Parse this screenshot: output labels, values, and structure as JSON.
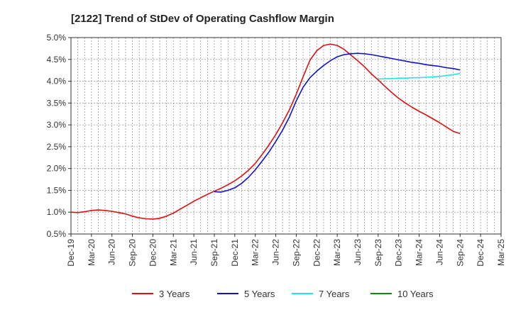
{
  "chart_data": {
    "type": "line",
    "title": "[2122]  Trend of StDev of Operating Cashflow Margin",
    "xlabel": "",
    "ylabel": "",
    "x_ticks": [
      "Dec-19",
      "Mar-20",
      "Jun-20",
      "Sep-20",
      "Dec-20",
      "Mar-21",
      "Jun-21",
      "Sep-21",
      "Dec-21",
      "Mar-22",
      "Jun-22",
      "Sep-22",
      "Dec-22",
      "Mar-23",
      "Jun-23",
      "Sep-23",
      "Dec-23",
      "Mar-24",
      "Jun-24",
      "Sep-24",
      "Dec-24",
      "Mar-25"
    ],
    "y_ticks": [
      "0.5%",
      "1.0%",
      "1.5%",
      "2.0%",
      "2.5%",
      "3.0%",
      "3.5%",
      "4.0%",
      "4.5%",
      "5.0%"
    ],
    "ylim": [
      0.5,
      5.0
    ],
    "grid": true,
    "legend_position": "bottom",
    "colors": {
      "3 Years": "#dd1111",
      "5 Years": "#1111cc",
      "7 Years": "#22e5e5",
      "10 Years": "#118811"
    },
    "series": [
      {
        "name": "3 Years",
        "x": [
          "Dec-19",
          "Jan-20",
          "Feb-20",
          "Mar-20",
          "Apr-20",
          "May-20",
          "Jun-20",
          "Jul-20",
          "Aug-20",
          "Sep-20",
          "Oct-20",
          "Nov-20",
          "Dec-20",
          "Jan-21",
          "Feb-21",
          "Mar-21",
          "Apr-21",
          "May-21",
          "Jun-21",
          "Jul-21",
          "Aug-21",
          "Sep-21",
          "Oct-21",
          "Nov-21",
          "Dec-21",
          "Jan-22",
          "Feb-22",
          "Mar-22",
          "Apr-22",
          "May-22",
          "Jun-22",
          "Jul-22",
          "Aug-22",
          "Sep-22",
          "Oct-22",
          "Nov-22",
          "Dec-22",
          "Jan-23",
          "Feb-23",
          "Mar-23",
          "Apr-23",
          "May-23",
          "Jun-23",
          "Jul-23",
          "Aug-23",
          "Sep-23",
          "Oct-23",
          "Nov-23",
          "Dec-23",
          "Jan-24",
          "Feb-24",
          "Mar-24",
          "Apr-24",
          "May-24",
          "Jun-24",
          "Jul-24",
          "Aug-24",
          "Sep-24"
        ],
        "values": [
          1.0,
          0.99,
          1.01,
          1.04,
          1.05,
          1.04,
          1.02,
          0.99,
          0.96,
          0.91,
          0.87,
          0.85,
          0.84,
          0.86,
          0.91,
          0.98,
          1.07,
          1.16,
          1.25,
          1.33,
          1.41,
          1.48,
          1.55,
          1.63,
          1.72,
          1.83,
          1.96,
          2.12,
          2.32,
          2.54,
          2.78,
          3.05,
          3.35,
          3.7,
          4.1,
          4.48,
          4.7,
          4.82,
          4.85,
          4.82,
          4.73,
          4.6,
          4.47,
          4.33,
          4.17,
          4.03,
          3.88,
          3.74,
          3.61,
          3.5,
          3.4,
          3.31,
          3.23,
          3.14,
          3.05,
          2.95,
          2.85,
          2.8
        ]
      },
      {
        "name": "5 Years",
        "x": [
          "Sep-21",
          "Oct-21",
          "Nov-21",
          "Dec-21",
          "Jan-22",
          "Feb-22",
          "Mar-22",
          "Apr-22",
          "May-22",
          "Jun-22",
          "Jul-22",
          "Aug-22",
          "Sep-22",
          "Oct-22",
          "Nov-22",
          "Dec-22",
          "Jan-23",
          "Feb-23",
          "Mar-23",
          "Apr-23",
          "May-23",
          "Jun-23",
          "Jul-23",
          "Aug-23",
          "Sep-23",
          "Oct-23",
          "Nov-23",
          "Dec-23",
          "Jan-24",
          "Feb-24",
          "Mar-24",
          "Apr-24",
          "May-24",
          "Jun-24",
          "Jul-24",
          "Aug-24",
          "Sep-24"
        ],
        "values": [
          1.47,
          1.46,
          1.5,
          1.56,
          1.66,
          1.8,
          1.97,
          2.17,
          2.38,
          2.62,
          2.88,
          3.18,
          3.55,
          3.86,
          4.08,
          4.23,
          4.36,
          4.47,
          4.56,
          4.61,
          4.63,
          4.64,
          4.63,
          4.61,
          4.58,
          4.55,
          4.52,
          4.49,
          4.46,
          4.43,
          4.41,
          4.38,
          4.36,
          4.34,
          4.31,
          4.29,
          4.26
        ]
      },
      {
        "name": "7 Years",
        "x": [
          "Sep-23",
          "Oct-23",
          "Nov-23",
          "Dec-23",
          "Jan-24",
          "Feb-24",
          "Mar-24",
          "Apr-24",
          "May-24",
          "Jun-24",
          "Jul-24",
          "Aug-24",
          "Sep-24"
        ],
        "values": [
          4.05,
          4.06,
          4.06,
          4.07,
          4.07,
          4.08,
          4.08,
          4.09,
          4.1,
          4.11,
          4.13,
          4.15,
          4.18
        ]
      },
      {
        "name": "10 Years",
        "x": [],
        "values": []
      }
    ]
  }
}
